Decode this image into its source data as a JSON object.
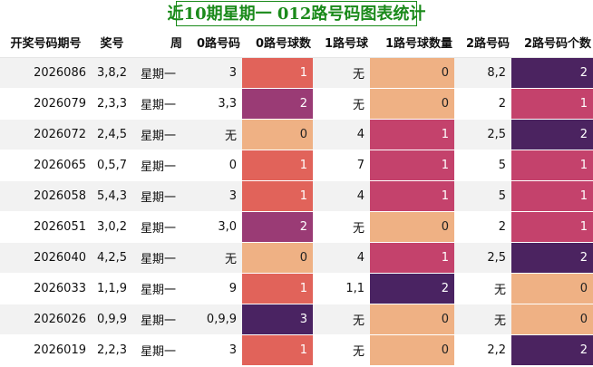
{
  "title": "近10期星期一 012路号码图表统计",
  "colors": {
    "c0": "#efb184",
    "c1": "#e1635a",
    "c2": "#9a3b75",
    "c3": "#4a2362",
    "c1b": "#c4426c",
    "c2b": "#4b2360"
  },
  "headers": [
    "开奖号码期号",
    "奖号",
    "周",
    "0路号码",
    "0路号球数",
    "1路号球",
    "1路号球数量",
    "2路号码",
    "2路号码个数"
  ],
  "rows": [
    {
      "issue": "2026086",
      "nums": "3,8,2",
      "week": "星期一",
      "r0": "3",
      "r0n": "1",
      "r1": "无",
      "r1n": "0",
      "r2": "8,2",
      "r2n": "2"
    },
    {
      "issue": "2026079",
      "nums": "2,3,3",
      "week": "星期一",
      "r0": "3,3",
      "r0n": "2",
      "r1": "无",
      "r1n": "0",
      "r2": "2",
      "r2n": "1"
    },
    {
      "issue": "2026072",
      "nums": "2,4,5",
      "week": "星期一",
      "r0": "无",
      "r0n": "0",
      "r1": "4",
      "r1n": "1",
      "r2": "2,5",
      "r2n": "2"
    },
    {
      "issue": "2026065",
      "nums": "0,5,7",
      "week": "星期一",
      "r0": "0",
      "r0n": "1",
      "r1": "7",
      "r1n": "1",
      "r2": "5",
      "r2n": "1"
    },
    {
      "issue": "2026058",
      "nums": "5,4,3",
      "week": "星期一",
      "r0": "3",
      "r0n": "1",
      "r1": "4",
      "r1n": "1",
      "r2": "5",
      "r2n": "1"
    },
    {
      "issue": "2026051",
      "nums": "3,0,2",
      "week": "星期一",
      "r0": "3,0",
      "r0n": "2",
      "r1": "无",
      "r1n": "0",
      "r2": "2",
      "r2n": "1"
    },
    {
      "issue": "2026040",
      "nums": "4,2,5",
      "week": "星期一",
      "r0": "无",
      "r0n": "0",
      "r1": "4",
      "r1n": "1",
      "r2": "2,5",
      "r2n": "2"
    },
    {
      "issue": "2026033",
      "nums": "1,1,9",
      "week": "星期一",
      "r0": "9",
      "r0n": "1",
      "r1": "1,1",
      "r1n": "2",
      "r2": "无",
      "r2n": "0"
    },
    {
      "issue": "2026026",
      "nums": "0,9,9",
      "week": "星期一",
      "r0": "0,9,9",
      "r0n": "3",
      "r1": "无",
      "r1n": "0",
      "r2": "无",
      "r2n": "0"
    },
    {
      "issue": "2026019",
      "nums": "2,2,3",
      "week": "星期一",
      "r0": "3",
      "r0n": "1",
      "r1": "无",
      "r1n": "0",
      "r2": "2,2",
      "r2n": "2"
    }
  ]
}
